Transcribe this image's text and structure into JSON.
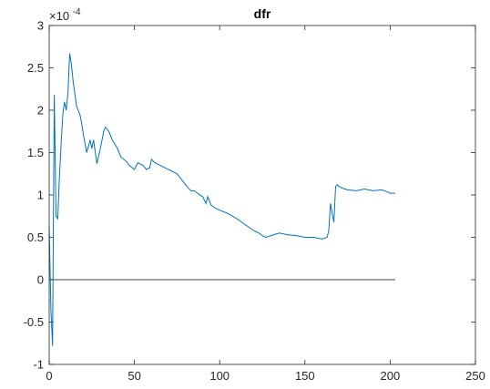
{
  "chart_data": {
    "type": "line",
    "title": "dfr",
    "xlabel": "",
    "ylabel": "",
    "y_exponent_label": "×10",
    "y_exponent_power": "-4",
    "xlim": [
      0,
      250
    ],
    "ylim": [
      -1,
      3
    ],
    "xticks": [
      0,
      50,
      100,
      150,
      200,
      250
    ],
    "yticks": [
      -1,
      -0.5,
      0,
      0.5,
      1,
      1.5,
      2,
      2.5,
      3
    ],
    "ytick_labels": [
      "-1",
      "-0.5",
      "0",
      "0.5",
      "1",
      "1.5",
      "2",
      "2.5",
      "3"
    ],
    "grid": false,
    "colors": {
      "series": "#0072BD",
      "zero_line": "#000000",
      "axes": "#262626"
    },
    "series": [
      {
        "x": [
          0,
          1,
          2,
          3,
          4,
          5,
          6,
          7,
          8,
          9,
          10,
          11,
          12,
          13,
          14,
          15,
          16,
          17,
          18,
          19,
          20,
          22,
          24,
          25,
          26,
          28,
          30,
          32,
          33,
          35,
          37,
          40,
          42,
          45,
          47,
          50,
          52,
          55,
          57,
          59,
          60,
          62,
          65,
          70,
          75,
          77,
          80,
          83,
          85,
          87,
          90,
          92,
          93,
          95,
          97,
          100,
          105,
          110,
          115,
          120,
          123,
          125,
          127,
          130,
          135,
          140,
          145,
          150,
          155,
          160,
          163,
          164,
          165,
          166,
          167,
          168,
          169,
          170,
          172,
          175,
          180,
          185,
          190,
          195,
          198,
          200,
          203
        ],
        "y": [
          0.63,
          -0.35,
          -0.78,
          2.18,
          0.75,
          0.72,
          1.2,
          1.6,
          1.95,
          2.1,
          2.0,
          2.2,
          2.67,
          2.55,
          2.35,
          2.2,
          2.05,
          2.0,
          1.95,
          1.85,
          1.72,
          1.5,
          1.65,
          1.55,
          1.65,
          1.37,
          1.55,
          1.75,
          1.8,
          1.75,
          1.65,
          1.55,
          1.45,
          1.4,
          1.35,
          1.3,
          1.38,
          1.35,
          1.3,
          1.32,
          1.42,
          1.38,
          1.35,
          1.3,
          1.25,
          1.2,
          1.12,
          1.05,
          1.05,
          1.02,
          0.98,
          0.9,
          0.98,
          0.88,
          0.85,
          0.82,
          0.78,
          0.72,
          0.65,
          0.58,
          0.55,
          0.52,
          0.5,
          0.52,
          0.55,
          0.53,
          0.52,
          0.5,
          0.5,
          0.48,
          0.5,
          0.58,
          0.9,
          0.78,
          0.68,
          1.1,
          1.12,
          1.1,
          1.08,
          1.06,
          1.05,
          1.07,
          1.05,
          1.06,
          1.04,
          1.02,
          1.02
        ]
      }
    ]
  }
}
